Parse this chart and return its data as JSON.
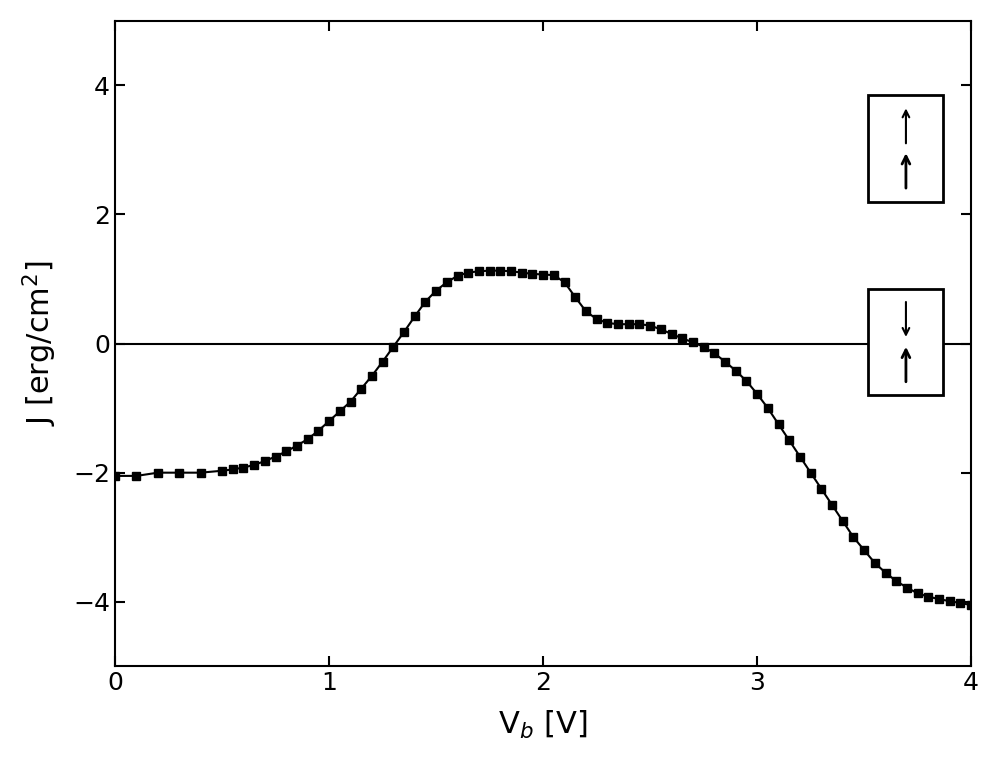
{
  "x": [
    0.0,
    0.1,
    0.2,
    0.3,
    0.4,
    0.5,
    0.55,
    0.6,
    0.65,
    0.7,
    0.75,
    0.8,
    0.85,
    0.9,
    0.95,
    1.0,
    1.05,
    1.1,
    1.15,
    1.2,
    1.25,
    1.3,
    1.35,
    1.4,
    1.45,
    1.5,
    1.55,
    1.6,
    1.65,
    1.7,
    1.75,
    1.8,
    1.85,
    1.9,
    1.95,
    2.0,
    2.05,
    2.1,
    2.15,
    2.2,
    2.25,
    2.3,
    2.35,
    2.4,
    2.45,
    2.5,
    2.55,
    2.6,
    2.65,
    2.7,
    2.75,
    2.8,
    2.85,
    2.9,
    2.95,
    3.0,
    3.05,
    3.1,
    3.15,
    3.2,
    3.25,
    3.3,
    3.35,
    3.4,
    3.45,
    3.5,
    3.55,
    3.6,
    3.65,
    3.7,
    3.75,
    3.8,
    3.85,
    3.9,
    3.95,
    4.0
  ],
  "y": [
    -2.05,
    -2.05,
    -2.0,
    -2.0,
    -2.0,
    -1.97,
    -1.95,
    -1.92,
    -1.88,
    -1.82,
    -1.75,
    -1.67,
    -1.58,
    -1.48,
    -1.35,
    -1.2,
    -1.05,
    -0.9,
    -0.7,
    -0.5,
    -0.28,
    -0.05,
    0.18,
    0.42,
    0.65,
    0.82,
    0.95,
    1.05,
    1.1,
    1.12,
    1.13,
    1.13,
    1.12,
    1.1,
    1.08,
    1.07,
    1.06,
    0.95,
    0.72,
    0.5,
    0.38,
    0.32,
    0.3,
    0.3,
    0.3,
    0.28,
    0.22,
    0.15,
    0.08,
    0.02,
    -0.05,
    -0.15,
    -0.28,
    -0.42,
    -0.58,
    -0.78,
    -1.0,
    -1.25,
    -1.5,
    -1.75,
    -2.0,
    -2.25,
    -2.5,
    -2.75,
    -3.0,
    -3.2,
    -3.4,
    -3.55,
    -3.68,
    -3.78,
    -3.87,
    -3.92,
    -3.96,
    -3.99,
    -4.02,
    -4.05
  ],
  "xlabel": "V$_b$ [V]",
  "ylabel": "J [erg/cm$^2$]",
  "xlim": [
    0,
    4
  ],
  "ylim": [
    -5,
    5
  ],
  "yticks": [
    -4,
    -2,
    0,
    2,
    4
  ],
  "xticks": [
    0,
    1,
    2,
    3,
    4
  ],
  "hline_y": 0,
  "line_color": "#000000",
  "marker": "s",
  "markersize": 5.5,
  "linewidth": 1.5,
  "background_color": "#ffffff",
  "figsize": [
    10.0,
    7.62
  ],
  "dpi": 100
}
